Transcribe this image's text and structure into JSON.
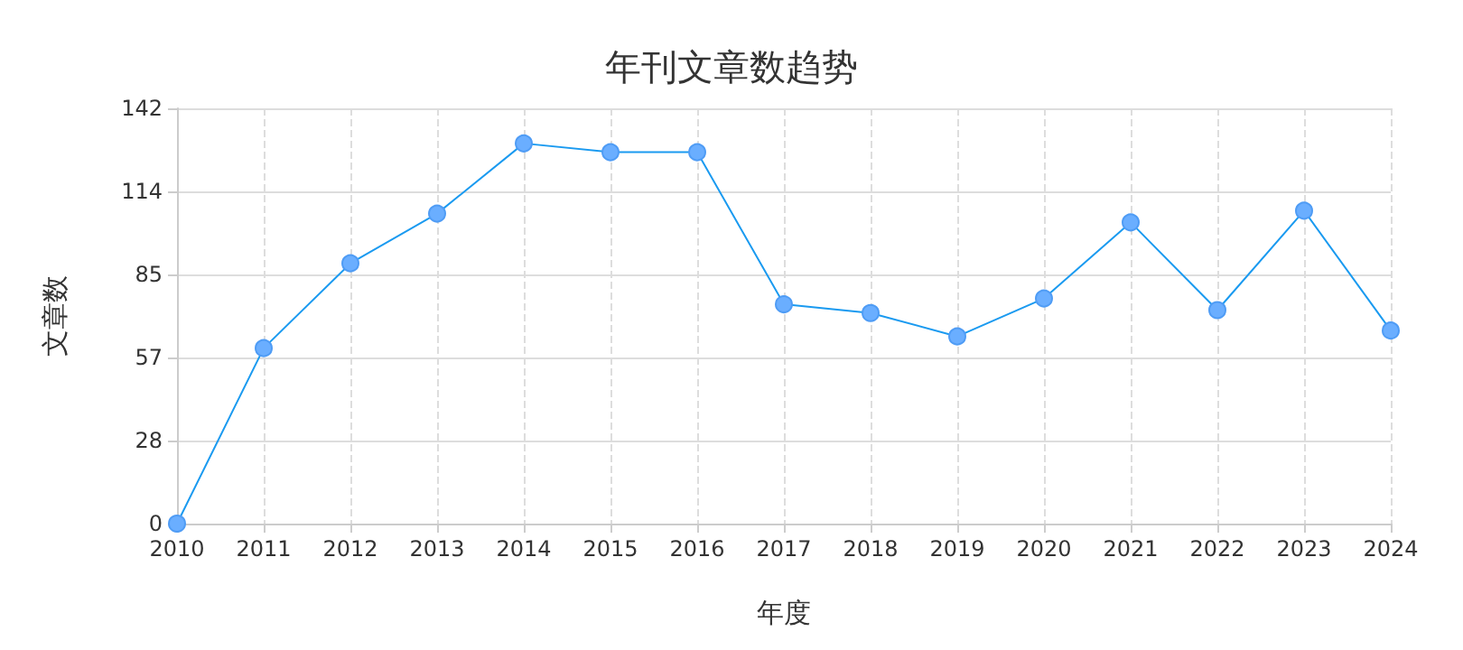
{
  "chart_data": {
    "type": "line",
    "title": "年刊文章数趋势",
    "xlabel": "年度",
    "ylabel": "文章数",
    "categories": [
      "2010",
      "2011",
      "2012",
      "2013",
      "2014",
      "2015",
      "2016",
      "2017",
      "2018",
      "2019",
      "2020",
      "2021",
      "2022",
      "2023",
      "2024"
    ],
    "series": [
      {
        "color": "#1a9af0",
        "values": [
          0,
          60,
          89,
          106,
          130,
          127,
          127,
          75,
          72,
          64,
          77,
          103,
          73,
          107,
          66
        ]
      }
    ],
    "ylim": [
      0,
      142
    ],
    "yticks": [
      0,
      {
        "value": 28.4,
        "label": "28"
      },
      {
        "value": 56.8,
        "label": "57"
      },
      {
        "value": 85.2,
        "label": "85"
      },
      {
        "value": 113.6,
        "label": "114"
      },
      142
    ],
    "grid": true,
    "marker": "circle",
    "line_style": "solid"
  }
}
